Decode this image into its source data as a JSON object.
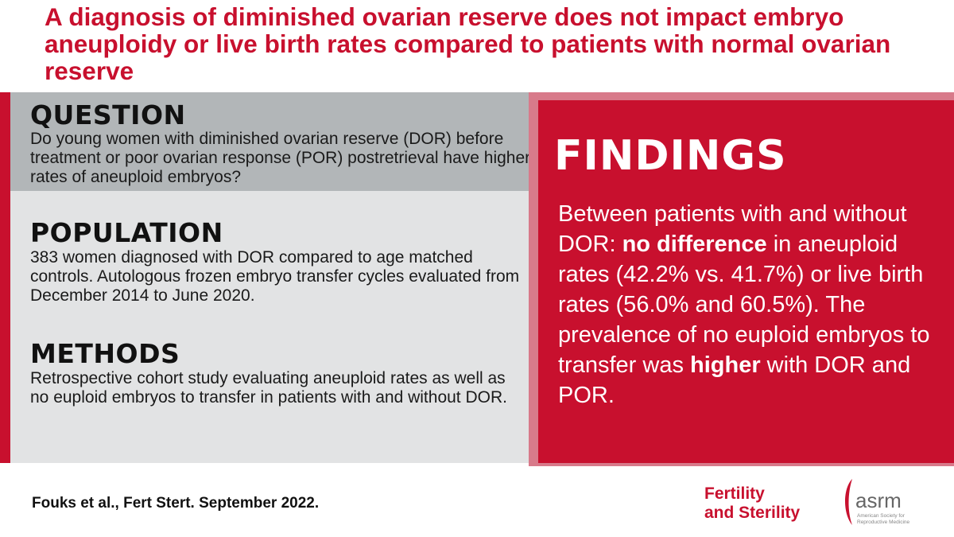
{
  "headline": "A diagnosis of diminished ovarian reserve does not impact embryo aneuploidy or live birth rates compared to patients with normal ovarian reserve",
  "question": {
    "heading": "QUESTION",
    "body": "Do young women with diminished ovarian reserve (DOR) before treatment or poor ovarian response (POR) postretrieval have higher rates of aneuploid embryos?"
  },
  "population": {
    "heading": "POPULATION",
    "body": "383 women diagnosed with DOR compared to age matched controls. Autologous frozen embryo transfer cycles evaluated from December 2014 to June 2020."
  },
  "methods": {
    "heading": "METHODS",
    "body": "Retrospective cohort study evaluating aneuploid rates as well as no euploid embryos to transfer in patients with and without DOR."
  },
  "findings": {
    "heading": "FINDINGS",
    "part1": "Between patients with and without DOR: ",
    "bold1": "no difference",
    "part2": " in aneuploid rates (42.2% vs. 41.7%) or live birth rates (56.0% and 60.5%). The prevalence of no euploid embryos to transfer was ",
    "bold2": "higher",
    "part3": " with DOR and POR."
  },
  "citation": "Fouks et al., Fert Stert. September 2022.",
  "logos": {
    "journal_line1": "Fertility",
    "journal_line2": "and Sterility",
    "asrm_text": "asrm",
    "asrm_subtitle_line1": "American Society for",
    "asrm_subtitle_line2": "Reproductive Medicine"
  },
  "colors": {
    "brand_red": "#c8102e",
    "question_bg": "#b2b6b8",
    "panel_bg": "#e2e3e4",
    "findings_border": "#d87a8a"
  }
}
